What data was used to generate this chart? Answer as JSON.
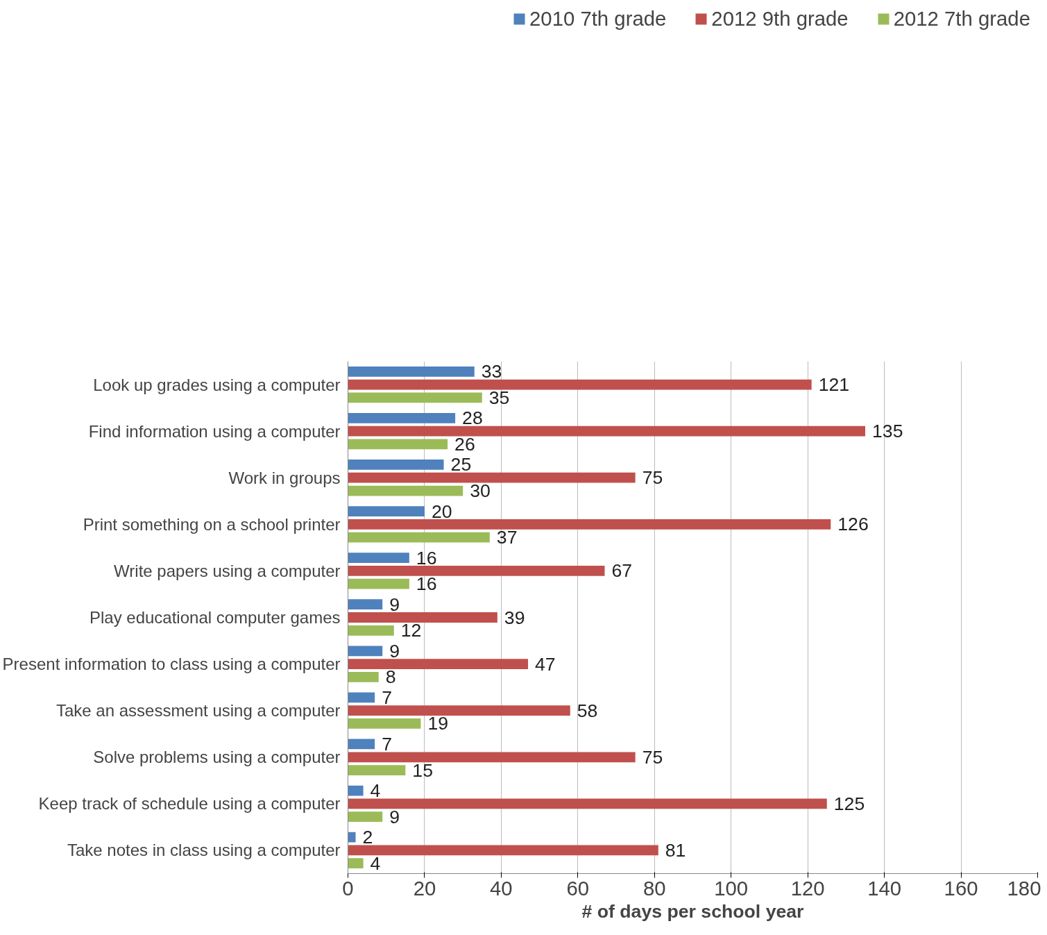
{
  "chart_data": {
    "type": "bar",
    "orientation": "horizontal",
    "xlabel": "# of days per school year",
    "categories": [
      "Look up grades using a computer",
      "Find information using a computer",
      "Work in groups",
      "Print something on a school printer",
      "Write papers using a computer",
      "Play educational computer games",
      "Present information to class using a computer",
      "Take an assessment using a computer",
      "Solve problems using a computer",
      "Keep track of schedule using a computer",
      "Take notes in class using a computer"
    ],
    "series": [
      {
        "name": "2010 7th grade",
        "color": "#4f81bd",
        "values": [
          33,
          28,
          25,
          20,
          16,
          9,
          9,
          7,
          7,
          4,
          2
        ]
      },
      {
        "name": "2012 9th grade",
        "color": "#c0504d",
        "values": [
          121,
          135,
          75,
          126,
          67,
          39,
          47,
          58,
          75,
          125,
          81
        ]
      },
      {
        "name": "2012 7th grade",
        "color": "#9bbb59",
        "values": [
          35,
          26,
          30,
          37,
          16,
          12,
          8,
          19,
          15,
          9,
          4
        ]
      }
    ],
    "xlim": [
      0,
      180
    ],
    "xticks": [
      0,
      20,
      40,
      60,
      80,
      100,
      120,
      140,
      160,
      180
    ],
    "grid": "x",
    "legend": "top",
    "data_labels": true
  }
}
